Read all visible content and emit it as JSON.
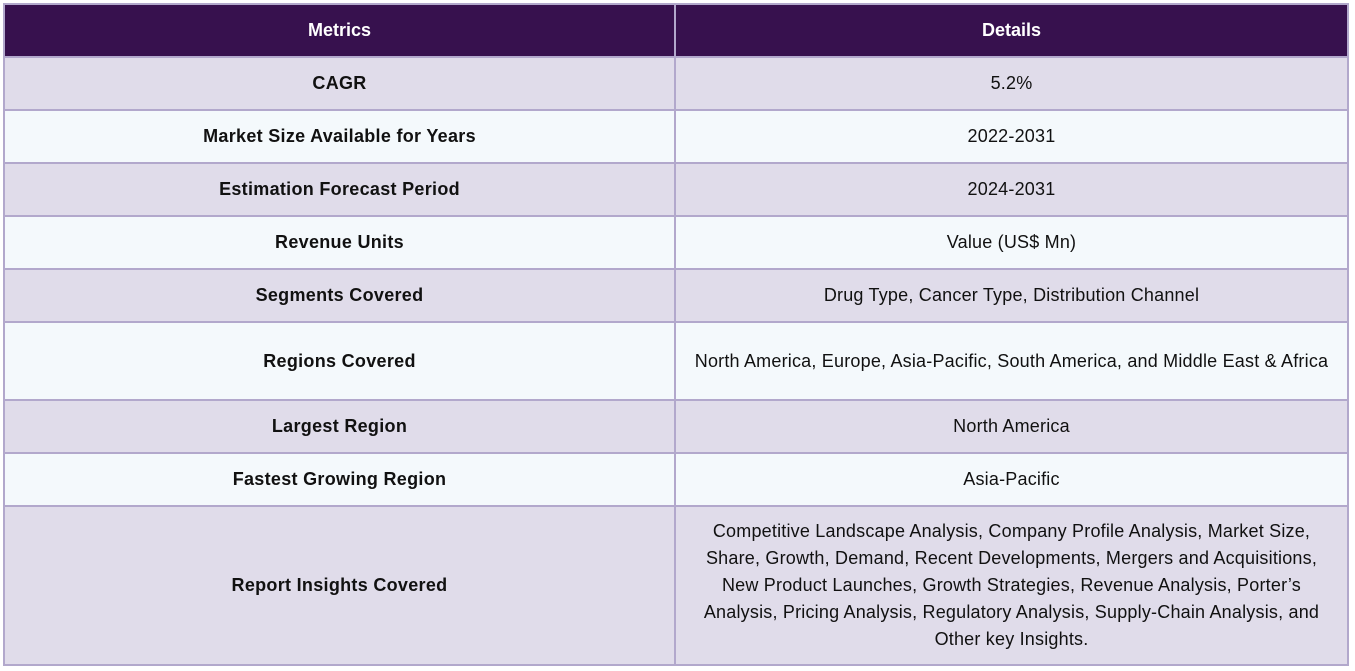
{
  "table": {
    "headers": {
      "metrics": "Metrics",
      "details": "Details"
    },
    "rows": [
      {
        "metric": "CAGR",
        "detail": "5.2%"
      },
      {
        "metric": "Market Size Available for Years",
        "detail": "2022-2031"
      },
      {
        "metric": "Estimation Forecast Period",
        "detail": "2024-2031"
      },
      {
        "metric": "Revenue Units",
        "detail": "Value (US$ Mn)"
      },
      {
        "metric": "Segments Covered",
        "detail": "Drug Type, Cancer Type, Distribution Channel"
      },
      {
        "metric": "Regions Covered",
        "detail": "North America, Europe, Asia-Pacific, South America, and Middle East & Africa"
      },
      {
        "metric": "Largest Region",
        "detail": "North America"
      },
      {
        "metric": "Fastest Growing Region",
        "detail": "Asia-Pacific"
      },
      {
        "metric": "Report Insights Covered",
        "detail": "Competitive Landscape Analysis, Company Profile Analysis, Market Size, Share, Growth, Demand, Recent Developments, Mergers and Acquisitions, New Product Launches, Growth Strategies, Revenue Analysis, Porter’s Analysis, Pricing Analysis, Regulatory Analysis, Supply-Chain Analysis, and Other key Insights."
      }
    ]
  },
  "colors": {
    "header_background": "#37114e",
    "header_text": "#ffffff",
    "row_odd_background": "#e0dcea",
    "row_even_background": "#f4f9fc",
    "border": "#b2a8cc"
  }
}
